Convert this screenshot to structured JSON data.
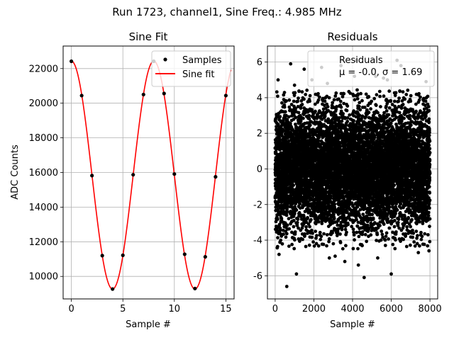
{
  "figure": {
    "suptitle": "Run 1723, channel1, Sine Freq.: 4.985 MHz"
  },
  "chart_data": [
    {
      "type": "line",
      "title": "Sine Fit",
      "xlabel": "Sample #",
      "ylabel": "ADC Counts",
      "xlim": [
        -0.8,
        15.8
      ],
      "ylim": [
        8700,
        23300
      ],
      "xticks": [
        0,
        5,
        10,
        15
      ],
      "yticks": [
        10000,
        12000,
        14000,
        16000,
        18000,
        20000,
        22000
      ],
      "grid": true,
      "legend_position": "top-right",
      "samples": {
        "name": "Samples",
        "color": "#000000",
        "x": [
          0,
          1,
          2,
          3,
          4,
          5,
          6,
          7,
          8,
          9,
          10,
          11,
          12,
          13,
          14,
          15
        ],
        "y": [
          22420,
          20440,
          15820,
          11200,
          9270,
          11220,
          15870,
          20500,
          22420,
          20560,
          15910,
          11280,
          9300,
          11130,
          15750,
          20440
        ]
      },
      "fit": {
        "name": "Sine fit",
        "color": "#ff0000",
        "amplitude": 6580,
        "offset": 15850,
        "period_samples": 8.0,
        "x_range": [
          0,
          15.5
        ]
      }
    },
    {
      "type": "scatter",
      "title": "Residuals",
      "xlabel": "Sample #",
      "ylabel": "",
      "xlim": [
        -400,
        8400
      ],
      "ylim": [
        -7.3,
        6.9
      ],
      "xticks": [
        0,
        2000,
        4000,
        6000,
        8000
      ],
      "yticks": [
        -6,
        -4,
        -2,
        0,
        2,
        4,
        6
      ],
      "grid": true,
      "legend_position": "top-right",
      "series": {
        "name": "Residuals",
        "stats_label": "μ = -0.0, σ = 1.69",
        "mean": 0.0,
        "sigma": 1.69,
        "n_points": 8000,
        "color": "#000000"
      },
      "outliers": {
        "x": [
          150,
          200,
          600,
          1000,
          1100,
          1500,
          1900,
          2400,
          2700,
          2800,
          3400,
          3600,
          4100,
          4200,
          4300,
          4600,
          5200,
          5300,
          5800,
          6000,
          6300,
          6500,
          7800,
          7950,
          800,
          3100,
          5600,
          7400
        ],
        "y": [
          5.0,
          -4.8,
          -6.6,
          4.7,
          -5.9,
          5.6,
          5.0,
          5.7,
          4.8,
          -5.0,
          5.8,
          -5.2,
          5.2,
          6.1,
          -5.4,
          -6.1,
          5.2,
          -5.0,
          5.0,
          -5.9,
          6.1,
          5.8,
          4.9,
          -4.6,
          5.9,
          -4.9,
          5.1,
          -4.7
        ]
      }
    }
  ]
}
